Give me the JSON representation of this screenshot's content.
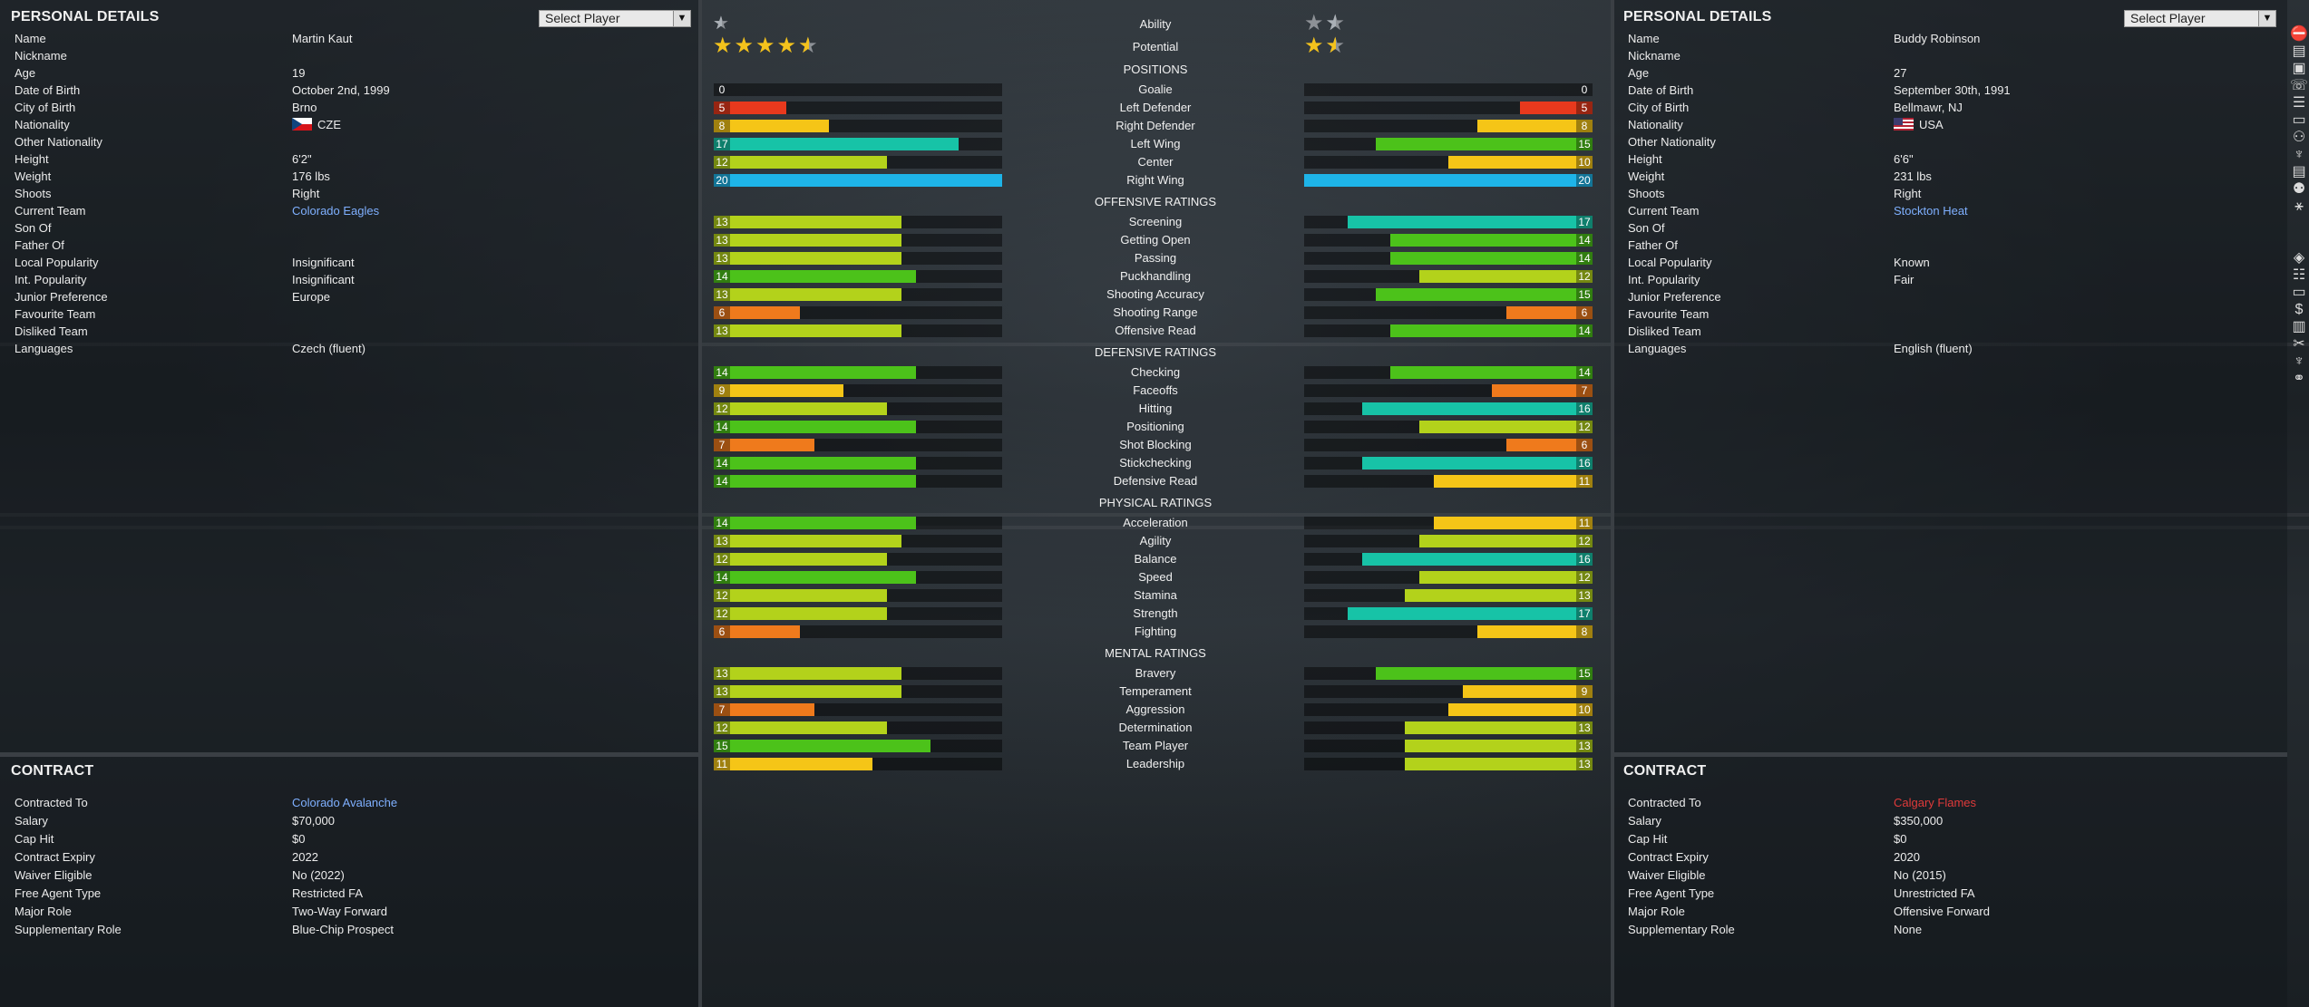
{
  "left_player": {
    "panel_title": "PERSONAL DETAILS",
    "select_label": "Select Player",
    "details": [
      {
        "label": "Name",
        "value": "Martin Kaut"
      },
      {
        "label": "Nickname",
        "value": ""
      },
      {
        "label": "Age",
        "value": "19"
      },
      {
        "label": "Date of Birth",
        "value": "October 2nd, 1999"
      },
      {
        "label": "City of Birth",
        "value": "Brno"
      },
      {
        "label": "Nationality",
        "value": "CZE",
        "flag": "cze"
      },
      {
        "label": "Other Nationality",
        "value": ""
      },
      {
        "label": "Height",
        "value": "6'2\""
      },
      {
        "label": "Weight",
        "value": "176 lbs"
      },
      {
        "label": "Shoots",
        "value": "Right"
      },
      {
        "label": "Current Team",
        "value": "Colorado Eagles",
        "style": "link"
      },
      {
        "label": "Son Of",
        "value": ""
      },
      {
        "label": "Father Of",
        "value": ""
      },
      {
        "label": "Local Popularity",
        "value": "Insignificant"
      },
      {
        "label": "Int. Popularity",
        "value": "Insignificant"
      },
      {
        "label": "Junior Preference",
        "value": "Europe"
      },
      {
        "label": "Favourite Team",
        "value": ""
      },
      {
        "label": "Disliked Team",
        "value": ""
      },
      {
        "label": "Languages",
        "value": "Czech (fluent)"
      }
    ],
    "contract_title": "CONTRACT",
    "contract": [
      {
        "label": "Contracted To",
        "value": "Colorado Avalanche",
        "style": "link"
      },
      {
        "label": "Salary",
        "value": "$70,000"
      },
      {
        "label": "Cap Hit",
        "value": "$0"
      },
      {
        "label": "Contract Expiry",
        "value": "2022"
      },
      {
        "label": "Waiver Eligible",
        "value": "No (2022)"
      },
      {
        "label": "Free Agent Type",
        "value": "Restricted FA"
      },
      {
        "label": "Major Role",
        "value": "Two-Way Forward"
      },
      {
        "label": "Supplementary Role",
        "value": "Blue-Chip Prospect"
      }
    ],
    "ability_stars": 0.5,
    "potential_stars": 4.5
  },
  "right_player": {
    "panel_title": "PERSONAL DETAILS",
    "select_label": "Select Player",
    "details": [
      {
        "label": "Name",
        "value": "Buddy Robinson"
      },
      {
        "label": "Nickname",
        "value": ""
      },
      {
        "label": "Age",
        "value": "27"
      },
      {
        "label": "Date of Birth",
        "value": "September 30th, 1991"
      },
      {
        "label": "City of Birth",
        "value": "Bellmawr, NJ"
      },
      {
        "label": "Nationality",
        "value": "USA",
        "flag": "usa"
      },
      {
        "label": "Other Nationality",
        "value": ""
      },
      {
        "label": "Height",
        "value": "6'6\""
      },
      {
        "label": "Weight",
        "value": "231 lbs"
      },
      {
        "label": "Shoots",
        "value": "Right"
      },
      {
        "label": "Current Team",
        "value": "Stockton Heat",
        "style": "link"
      },
      {
        "label": "Son Of",
        "value": ""
      },
      {
        "label": "Father Of",
        "value": ""
      },
      {
        "label": "Local Popularity",
        "value": "Known"
      },
      {
        "label": "Int. Popularity",
        "value": "Fair"
      },
      {
        "label": "Junior Preference",
        "value": ""
      },
      {
        "label": "Favourite Team",
        "value": ""
      },
      {
        "label": "Disliked Team",
        "value": ""
      },
      {
        "label": "Languages",
        "value": "English (fluent)"
      }
    ],
    "contract_title": "CONTRACT",
    "contract": [
      {
        "label": "Contracted To",
        "value": "Calgary Flames",
        "style": "red"
      },
      {
        "label": "Salary",
        "value": "$350,000"
      },
      {
        "label": "Cap Hit",
        "value": "$0"
      },
      {
        "label": "Contract Expiry",
        "value": "2020"
      },
      {
        "label": "Waiver Eligible",
        "value": "No (2015)"
      },
      {
        "label": "Free Agent Type",
        "value": "Unrestricted FA"
      },
      {
        "label": "Major Role",
        "value": "Offensive Forward"
      },
      {
        "label": "Supplementary Role",
        "value": "None"
      }
    ],
    "ability_stars": 1.5,
    "potential_stars": 1.5
  },
  "comparison": {
    "ability_label": "Ability",
    "potential_label": "Potential",
    "max_rating": 20,
    "sections": [
      {
        "title": "POSITIONS",
        "rows": [
          {
            "label": "Goalie",
            "left": 0,
            "right": 0
          },
          {
            "label": "Left Defender",
            "left": 5,
            "right": 5
          },
          {
            "label": "Right Defender",
            "left": 8,
            "right": 8
          },
          {
            "label": "Left Wing",
            "left": 17,
            "right": 15
          },
          {
            "label": "Center",
            "left": 12,
            "right": 10
          },
          {
            "label": "Right Wing",
            "left": 20,
            "right": 20
          }
        ]
      },
      {
        "title": "OFFENSIVE RATINGS",
        "rows": [
          {
            "label": "Screening",
            "left": 13,
            "right": 17
          },
          {
            "label": "Getting Open",
            "left": 13,
            "right": 14
          },
          {
            "label": "Passing",
            "left": 13,
            "right": 14
          },
          {
            "label": "Puckhandling",
            "left": 14,
            "right": 12
          },
          {
            "label": "Shooting Accuracy",
            "left": 13,
            "right": 15
          },
          {
            "label": "Shooting Range",
            "left": 6,
            "right": 6
          },
          {
            "label": "Offensive Read",
            "left": 13,
            "right": 14
          }
        ]
      },
      {
        "title": "DEFENSIVE RATINGS",
        "rows": [
          {
            "label": "Checking",
            "left": 14,
            "right": 14
          },
          {
            "label": "Faceoffs",
            "left": 9,
            "right": 7
          },
          {
            "label": "Hitting",
            "left": 12,
            "right": 16
          },
          {
            "label": "Positioning",
            "left": 14,
            "right": 12
          },
          {
            "label": "Shot Blocking",
            "left": 7,
            "right": 6
          },
          {
            "label": "Stickchecking",
            "left": 14,
            "right": 16
          },
          {
            "label": "Defensive Read",
            "left": 14,
            "right": 11
          }
        ]
      },
      {
        "title": "PHYSICAL RATINGS",
        "rows": [
          {
            "label": "Acceleration",
            "left": 14,
            "right": 11
          },
          {
            "label": "Agility",
            "left": 13,
            "right": 12
          },
          {
            "label": "Balance",
            "left": 12,
            "right": 16
          },
          {
            "label": "Speed",
            "left": 14,
            "right": 12
          },
          {
            "label": "Stamina",
            "left": 12,
            "right": 13
          },
          {
            "label": "Strength",
            "left": 12,
            "right": 17
          },
          {
            "label": "Fighting",
            "left": 6,
            "right": 8
          }
        ]
      },
      {
        "title": "MENTAL RATINGS",
        "rows": [
          {
            "label": "Bravery",
            "left": 13,
            "right": 15
          },
          {
            "label": "Temperament",
            "left": 13,
            "right": 9
          },
          {
            "label": "Aggression",
            "left": 7,
            "right": 10
          },
          {
            "label": "Determination",
            "left": 12,
            "right": 13
          },
          {
            "label": "Team Player",
            "left": 15,
            "right": 13
          },
          {
            "label": "Leadership",
            "left": 11,
            "right": 13
          }
        ]
      }
    ],
    "colors": {
      "very_low": "#e8391d",
      "low": "#ef7a1c",
      "mid": "#f5c517",
      "good": "#b3d21b",
      "very_good": "#4cc21a",
      "great": "#17c3a7",
      "elite": "#1eb4e8"
    }
  },
  "sidebar_icons": [
    "stop-icon",
    "notes-icon",
    "clipboard-icon",
    "phone-icon",
    "list-icon",
    "id-card-icon",
    "people-icon",
    "trophy-icon",
    "document-icon",
    "group-icon",
    "tactics-icon",
    "spacer",
    "spacer",
    "nhl-icon",
    "roster-icon",
    "id-card-icon",
    "dollar-icon",
    "chart-icon",
    "scissors-icon",
    "trophy-icon",
    "link-icon"
  ]
}
